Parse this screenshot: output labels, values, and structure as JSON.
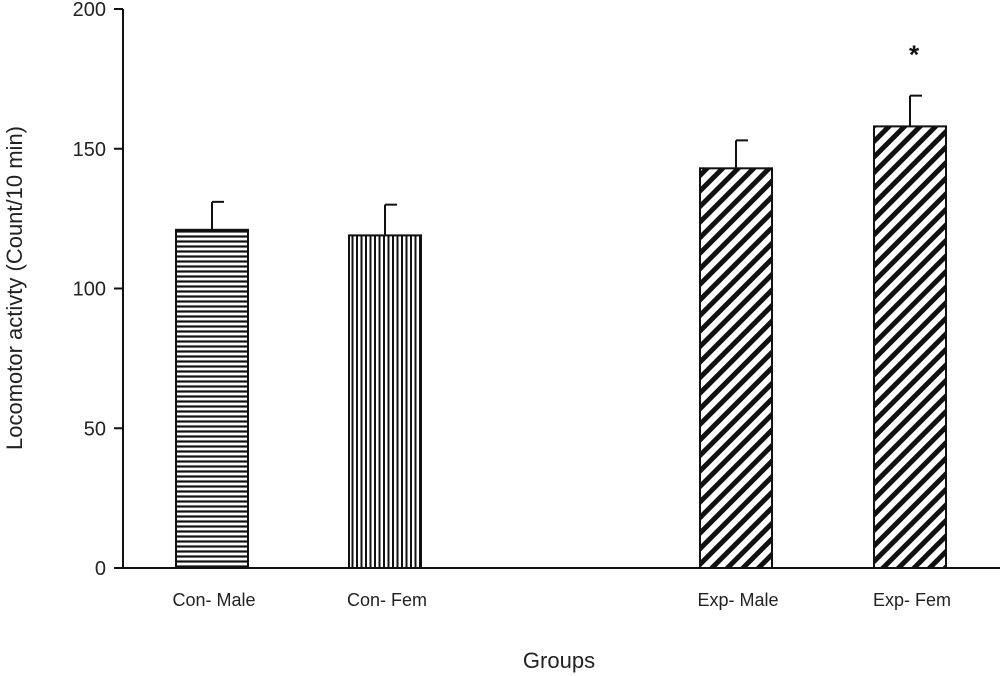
{
  "chart_data": {
    "type": "bar",
    "categories": [
      "Con- Male",
      "Con- Fem",
      "Exp- Male",
      "Exp- Fem"
    ],
    "values": [
      121,
      119,
      143,
      158
    ],
    "errors": [
      10,
      11,
      10,
      11
    ],
    "annotations": [
      "",
      "",
      "",
      "*"
    ],
    "patterns": [
      "horizontal-lines",
      "vertical-lines",
      "diagonal-lines",
      "diagonal-lines"
    ],
    "xlabel": "Groups",
    "ylabel": "Locomotor activty (Count/10 min)",
    "ylim": [
      0,
      200
    ],
    "yticks": [
      0,
      50,
      100,
      150,
      200
    ],
    "grid": false,
    "colors": {
      "bar_stroke": "#111111",
      "bar_fill": "#ffffff",
      "axis": "#111111"
    }
  }
}
